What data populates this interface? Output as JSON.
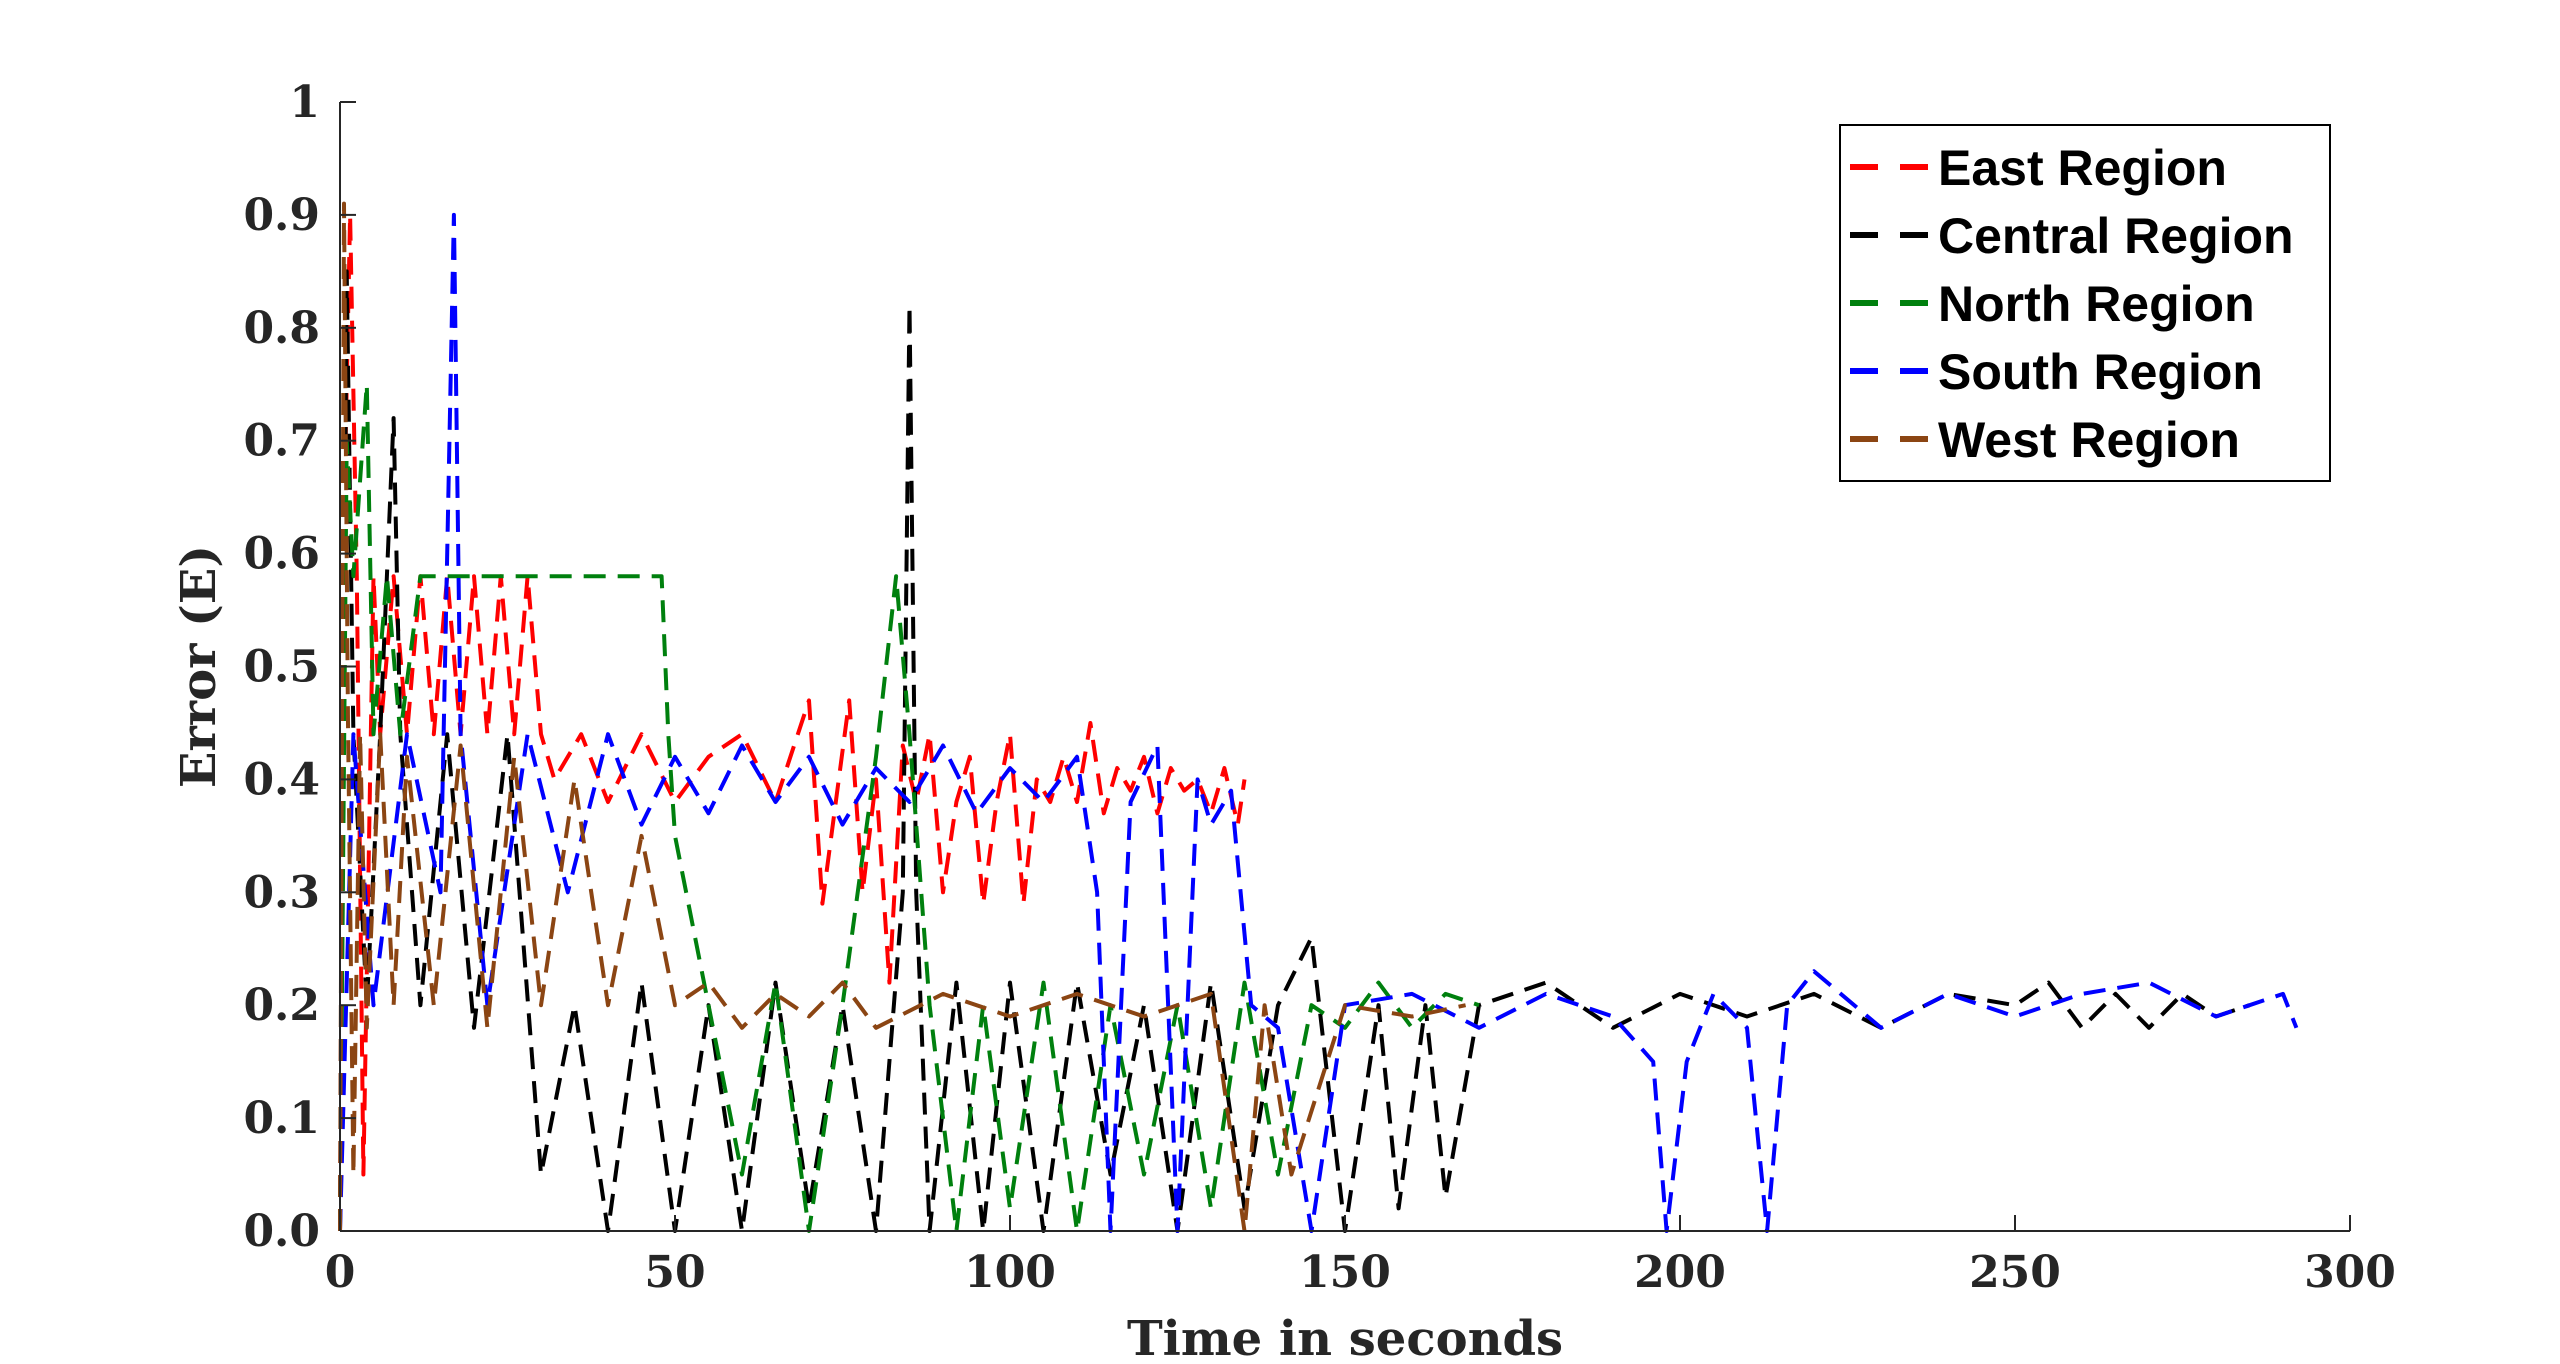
{
  "chart_data": {
    "type": "line",
    "title": "",
    "xlabel": "Time in seconds",
    "ylabel": "Error (E)",
    "xlim": [
      0,
      300
    ],
    "ylim": [
      0,
      1
    ],
    "grid": false,
    "legend_position": "top-right",
    "x_ticks": [
      {
        "value": 0,
        "label": "0"
      },
      {
        "value": 50,
        "label": "50"
      },
      {
        "value": 100,
        "label": "100"
      },
      {
        "value": 150,
        "label": "150"
      },
      {
        "value": 200,
        "label": "200"
      },
      {
        "value": 250,
        "label": "250"
      },
      {
        "value": 300,
        "label": "300"
      }
    ],
    "y_ticks": [
      {
        "value": 0,
        "label": "0.0"
      },
      {
        "value": 0.1,
        "label": "0.1"
      },
      {
        "value": 0.2,
        "label": "0.2"
      },
      {
        "value": 0.3,
        "label": "0.3"
      },
      {
        "value": 0.4,
        "label": "0.4"
      },
      {
        "value": 0.5,
        "label": "0.5"
      },
      {
        "value": 0.6,
        "label": "0.6"
      },
      {
        "value": 0.7,
        "label": "0.7"
      },
      {
        "value": 0.8,
        "label": "0.8"
      },
      {
        "value": 0.9,
        "label": "0.9"
      },
      {
        "value": 1,
        "label": "1"
      }
    ],
    "series": [
      {
        "name": "East Region",
        "color": "#ff0000",
        "line_style": "dashed",
        "points": [
          [
            0,
            0.0
          ],
          [
            0.5,
            0.6
          ],
          [
            1.5,
            0.9
          ],
          [
            2.5,
            0.58
          ],
          [
            3.5,
            0.05
          ],
          [
            5,
            0.58
          ],
          [
            6,
            0.44
          ],
          [
            8,
            0.58
          ],
          [
            10,
            0.44
          ],
          [
            12,
            0.58
          ],
          [
            14,
            0.44
          ],
          [
            16,
            0.58
          ],
          [
            18,
            0.44
          ],
          [
            20,
            0.58
          ],
          [
            22,
            0.44
          ],
          [
            24,
            0.58
          ],
          [
            26,
            0.44
          ],
          [
            28,
            0.58
          ],
          [
            30,
            0.44
          ],
          [
            32,
            0.4
          ],
          [
            36,
            0.44
          ],
          [
            40,
            0.38
          ],
          [
            45,
            0.44
          ],
          [
            50,
            0.38
          ],
          [
            55,
            0.42
          ],
          [
            60,
            0.44
          ],
          [
            65,
            0.38
          ],
          [
            70,
            0.47
          ],
          [
            72,
            0.29
          ],
          [
            74,
            0.38
          ],
          [
            76,
            0.47
          ],
          [
            78,
            0.3
          ],
          [
            80,
            0.4
          ],
          [
            82,
            0.22
          ],
          [
            84,
            0.43
          ],
          [
            86,
            0.38
          ],
          [
            88,
            0.44
          ],
          [
            90,
            0.3
          ],
          [
            92,
            0.38
          ],
          [
            94,
            0.42
          ],
          [
            96,
            0.29
          ],
          [
            98,
            0.38
          ],
          [
            100,
            0.44
          ],
          [
            102,
            0.29
          ],
          [
            104,
            0.4
          ],
          [
            106,
            0.38
          ],
          [
            108,
            0.42
          ],
          [
            110,
            0.38
          ],
          [
            112,
            0.45
          ],
          [
            114,
            0.37
          ],
          [
            116,
            0.41
          ],
          [
            118,
            0.39
          ],
          [
            120,
            0.42
          ],
          [
            122,
            0.37
          ],
          [
            124,
            0.41
          ],
          [
            126,
            0.39
          ],
          [
            128,
            0.4
          ],
          [
            130,
            0.37
          ],
          [
            132,
            0.41
          ],
          [
            134,
            0.36
          ],
          [
            135,
            0.4
          ]
        ]
      },
      {
        "name": "Central Region",
        "color": "#000000",
        "line_style": "dashed",
        "points": [
          [
            0,
            0.0
          ],
          [
            1,
            0.85
          ],
          [
            2,
            0.44
          ],
          [
            4,
            0.2
          ],
          [
            6,
            0.44
          ],
          [
            8,
            0.72
          ],
          [
            9,
            0.44
          ],
          [
            12,
            0.2
          ],
          [
            16,
            0.44
          ],
          [
            20,
            0.18
          ],
          [
            25,
            0.44
          ],
          [
            30,
            0.05
          ],
          [
            35,
            0.2
          ],
          [
            40,
            0.0
          ],
          [
            45,
            0.22
          ],
          [
            50,
            0.0
          ],
          [
            55,
            0.2
          ],
          [
            60,
            0.0
          ],
          [
            65,
            0.22
          ],
          [
            70,
            0.02
          ],
          [
            75,
            0.2
          ],
          [
            80,
            0.0
          ],
          [
            84,
            0.3
          ],
          [
            85,
            0.82
          ],
          [
            86,
            0.3
          ],
          [
            88,
            0.0
          ],
          [
            92,
            0.22
          ],
          [
            96,
            0.0
          ],
          [
            100,
            0.22
          ],
          [
            105,
            0.0
          ],
          [
            110,
            0.22
          ],
          [
            115,
            0.05
          ],
          [
            120,
            0.2
          ],
          [
            125,
            0.0
          ],
          [
            130,
            0.22
          ],
          [
            135,
            0.02
          ],
          [
            140,
            0.2
          ],
          [
            145,
            0.26
          ],
          [
            150,
            0.0
          ],
          [
            155,
            0.2
          ],
          [
            158,
            0.02
          ],
          [
            162,
            0.2
          ],
          [
            165,
            0.03
          ],
          [
            170,
            0.2
          ],
          [
            180,
            0.22
          ],
          [
            190,
            0.18
          ],
          [
            200,
            0.21
          ],
          [
            210,
            0.19
          ],
          [
            220,
            0.21
          ],
          [
            230,
            0.18
          ],
          [
            240,
            0.21
          ],
          [
            250,
            0.2
          ],
          [
            255,
            0.22
          ],
          [
            260,
            0.18
          ],
          [
            265,
            0.21
          ],
          [
            270,
            0.18
          ],
          [
            275,
            0.21
          ],
          [
            280,
            0.19
          ],
          [
            285,
            0.2
          ]
        ]
      },
      {
        "name": "North Region",
        "color": "#00800e",
        "line_style": "dashed",
        "points": [
          [
            0,
            0.0
          ],
          [
            1,
            0.7
          ],
          [
            2,
            0.58
          ],
          [
            4,
            0.75
          ],
          [
            5,
            0.44
          ],
          [
            7,
            0.58
          ],
          [
            9,
            0.44
          ],
          [
            12,
            0.58
          ],
          [
            20,
            0.58
          ],
          [
            30,
            0.58
          ],
          [
            40,
            0.58
          ],
          [
            48,
            0.58
          ],
          [
            49,
            0.44
          ],
          [
            50,
            0.35
          ],
          [
            55,
            0.2
          ],
          [
            60,
            0.05
          ],
          [
            65,
            0.22
          ],
          [
            70,
            0.0
          ],
          [
            75,
            0.2
          ],
          [
            80,
            0.42
          ],
          [
            83,
            0.58
          ],
          [
            85,
            0.44
          ],
          [
            88,
            0.2
          ],
          [
            92,
            0.0
          ],
          [
            96,
            0.2
          ],
          [
            100,
            0.02
          ],
          [
            105,
            0.22
          ],
          [
            110,
            0.0
          ],
          [
            115,
            0.2
          ],
          [
            120,
            0.05
          ],
          [
            125,
            0.2
          ],
          [
            130,
            0.02
          ],
          [
            135,
            0.22
          ],
          [
            140,
            0.05
          ],
          [
            145,
            0.2
          ],
          [
            150,
            0.18
          ],
          [
            155,
            0.22
          ],
          [
            160,
            0.18
          ],
          [
            165,
            0.21
          ],
          [
            170,
            0.2
          ]
        ]
      },
      {
        "name": "South Region",
        "color": "#0000ff",
        "line_style": "dashed",
        "points": [
          [
            0,
            0.0
          ],
          [
            2,
            0.44
          ],
          [
            5,
            0.2
          ],
          [
            10,
            0.44
          ],
          [
            15,
            0.3
          ],
          [
            17,
            0.9
          ],
          [
            18,
            0.44
          ],
          [
            22,
            0.2
          ],
          [
            28,
            0.44
          ],
          [
            34,
            0.3
          ],
          [
            40,
            0.44
          ],
          [
            45,
            0.36
          ],
          [
            50,
            0.42
          ],
          [
            55,
            0.37
          ],
          [
            60,
            0.43
          ],
          [
            65,
            0.38
          ],
          [
            70,
            0.42
          ],
          [
            75,
            0.36
          ],
          [
            80,
            0.41
          ],
          [
            85,
            0.38
          ],
          [
            90,
            0.43
          ],
          [
            95,
            0.37
          ],
          [
            100,
            0.41
          ],
          [
            105,
            0.38
          ],
          [
            110,
            0.42
          ],
          [
            113,
            0.3
          ],
          [
            115,
            0.0
          ],
          [
            118,
            0.38
          ],
          [
            122,
            0.43
          ],
          [
            125,
            0.0
          ],
          [
            128,
            0.4
          ],
          [
            130,
            0.36
          ],
          [
            133,
            0.39
          ],
          [
            136,
            0.2
          ],
          [
            140,
            0.18
          ],
          [
            145,
            0.0
          ],
          [
            150,
            0.2
          ],
          [
            160,
            0.21
          ],
          [
            170,
            0.18
          ],
          [
            180,
            0.21
          ],
          [
            190,
            0.19
          ],
          [
            196,
            0.15
          ],
          [
            198,
            0.0
          ],
          [
            201,
            0.15
          ],
          [
            205,
            0.21
          ],
          [
            210,
            0.18
          ],
          [
            213,
            0.0
          ],
          [
            216,
            0.2
          ],
          [
            220,
            0.23
          ],
          [
            230,
            0.18
          ],
          [
            240,
            0.21
          ],
          [
            250,
            0.19
          ],
          [
            260,
            0.21
          ],
          [
            270,
            0.22
          ],
          [
            280,
            0.19
          ],
          [
            290,
            0.21
          ],
          [
            292,
            0.18
          ]
        ]
      },
      {
        "name": "West Region",
        "color": "#8b4513",
        "line_style": "dashed",
        "points": [
          [
            0,
            0.0
          ],
          [
            0.6,
            0.91
          ],
          [
            1.2,
            0.45
          ],
          [
            2,
            0.05
          ],
          [
            3,
            0.44
          ],
          [
            4,
            0.18
          ],
          [
            6,
            0.44
          ],
          [
            8,
            0.2
          ],
          [
            10,
            0.42
          ],
          [
            14,
            0.2
          ],
          [
            18,
            0.43
          ],
          [
            22,
            0.18
          ],
          [
            26,
            0.42
          ],
          [
            30,
            0.2
          ],
          [
            35,
            0.4
          ],
          [
            40,
            0.2
          ],
          [
            45,
            0.35
          ],
          [
            50,
            0.2
          ],
          [
            55,
            0.22
          ],
          [
            60,
            0.18
          ],
          [
            65,
            0.21
          ],
          [
            70,
            0.19
          ],
          [
            75,
            0.22
          ],
          [
            80,
            0.18
          ],
          [
            90,
            0.21
          ],
          [
            100,
            0.19
          ],
          [
            110,
            0.21
          ],
          [
            120,
            0.19
          ],
          [
            130,
            0.21
          ],
          [
            135,
            0.0
          ],
          [
            138,
            0.2
          ],
          [
            142,
            0.05
          ],
          [
            150,
            0.2
          ],
          [
            160,
            0.19
          ],
          [
            168,
            0.2
          ]
        ]
      }
    ]
  }
}
